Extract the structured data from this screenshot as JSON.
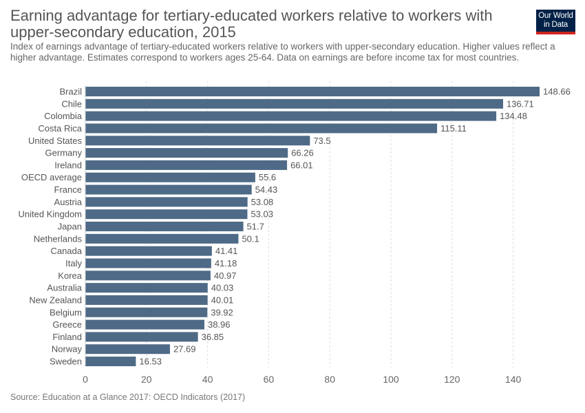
{
  "header": {
    "title": "Earning advantage for tertiary-educated workers relative to workers with upper-secondary education, 2015",
    "subtitle": "Index of earnings advantage of tertiary-educated workers relative to workers with upper-secondary education. Higher values reflect a higher advantage. Estimates correspond to workers ages 25-64. Data on earnings are before income tax for most countries."
  },
  "logo": {
    "line1": "Our World",
    "line2": "in Data",
    "bg_color": "#002147",
    "accent_color": "#ce261e"
  },
  "footer": {
    "source": "Source: Education at a Glance 2017: OECD Indicators (2017)"
  },
  "chart_data": {
    "type": "bar",
    "orientation": "horizontal",
    "categories": [
      "Brazil",
      "Chile",
      "Colombia",
      "Costa Rica",
      "United States",
      "Germany",
      "Ireland",
      "OECD average",
      "France",
      "Austria",
      "United Kingdom",
      "Japan",
      "Netherlands",
      "Canada",
      "Italy",
      "Korea",
      "Australia",
      "New Zealand",
      "Belgium",
      "Greece",
      "Finland",
      "Norway",
      "Sweden"
    ],
    "values": [
      148.66,
      136.71,
      134.48,
      115.11,
      73.5,
      66.26,
      66.01,
      55.6,
      54.43,
      53.08,
      53.03,
      51.7,
      50.1,
      41.41,
      41.18,
      40.97,
      40.03,
      40.01,
      39.92,
      38.96,
      36.85,
      27.69,
      16.53
    ],
    "xlim": [
      0,
      150
    ],
    "xticks": [
      0,
      20,
      40,
      60,
      80,
      100,
      120,
      140
    ],
    "grid": true,
    "bar_color": "#4e6a86"
  }
}
